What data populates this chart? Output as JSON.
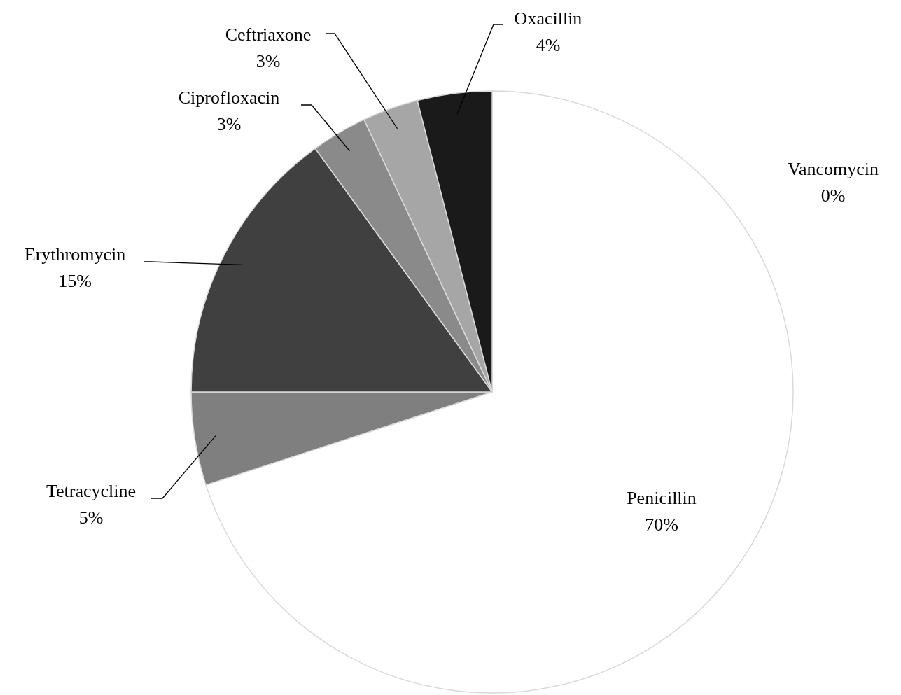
{
  "chart_data": {
    "type": "pie",
    "categories": [
      "Vancomycin",
      "Penicillin",
      "Tetracycline",
      "Erythromycin",
      "Ciprofloxacin",
      "Ceftriaxone",
      "Oxacillin"
    ],
    "values": [
      0,
      70,
      5,
      15,
      3,
      3,
      4
    ],
    "colors": [
      "#ffffff",
      "#ffffff",
      "#7f7f7f",
      "#404040",
      "#8a8a8a",
      "#a6a6a6",
      "#1a1a1a"
    ],
    "value_labels": [
      "0%",
      "70%",
      "5%",
      "15%",
      "3%",
      "3%",
      "4%"
    ]
  }
}
